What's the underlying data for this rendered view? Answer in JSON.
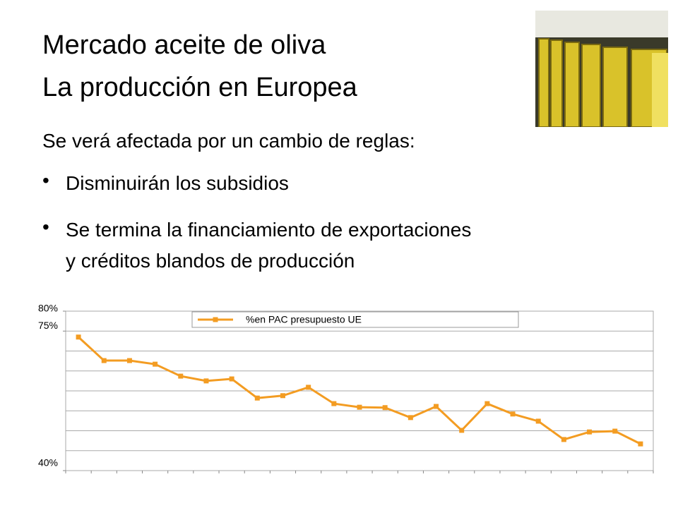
{
  "slide": {
    "title": [
      "Mercado aceite de oliva",
      "La producción en Europea"
    ],
    "intro": "Se verá afectada por un cambio de reglas:",
    "bullets": [
      "Disminuirán los subsidios",
      "Se termina la financiamiento de exportaciones",
      "y créditos blandos de producción"
    ]
  },
  "chart_data": {
    "type": "line",
    "categories": [
      null,
      null,
      null,
      null,
      null,
      null,
      null,
      null,
      null,
      null,
      null,
      null,
      null,
      null,
      null,
      null,
      null,
      null,
      null,
      null,
      null,
      null,
      null
    ],
    "series": [
      {
        "name": "%en PAC presupuesto UE",
        "color": "#f39c22",
        "values": [
          73.5,
          67.6,
          67.6,
          66.7,
          63.7,
          62.5,
          63.0,
          58.2,
          58.8,
          60.9,
          56.8,
          55.9,
          55.8,
          53.3,
          56.1,
          50.1,
          56.8,
          54.2,
          52.4,
          47.8,
          49.7,
          49.9,
          46.7
        ]
      }
    ],
    "ylim": [
      40,
      80
    ],
    "yticks": [
      {
        "value": 80,
        "label": "80%"
      },
      {
        "value": 75,
        "label": "75%"
      },
      {
        "value": 40,
        "label": "40%"
      }
    ],
    "grid_lines": [
      45,
      50,
      55,
      60,
      65,
      70,
      75
    ],
    "grid": true
  }
}
